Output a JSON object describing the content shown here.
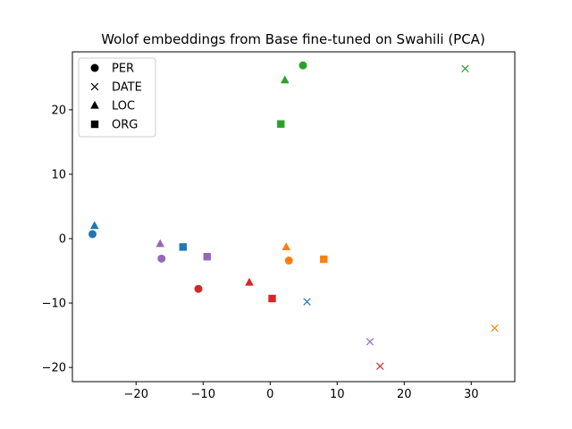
{
  "chart_data": {
    "type": "scatter",
    "title": "Wolof embeddings from Base fine-tuned on Swahili (PCA)",
    "xlabel": "",
    "ylabel": "",
    "xlim": [
      -29.5,
      36.5
    ],
    "ylim": [
      -22.2,
      29.0
    ],
    "xticks": [
      -20,
      -10,
      0,
      10,
      20,
      30
    ],
    "yticks": [
      -20,
      -10,
      0,
      10,
      20
    ],
    "grid": false,
    "legend": {
      "position": "top-left",
      "entries": [
        {
          "label": "PER",
          "marker": "circle"
        },
        {
          "label": "DATE",
          "marker": "x"
        },
        {
          "label": "LOC",
          "marker": "triangle"
        },
        {
          "label": "ORG",
          "marker": "square"
        }
      ]
    },
    "marker_by_type": {
      "PER": "circle",
      "DATE": "x",
      "LOC": "triangle",
      "ORG": "square"
    },
    "groups": [
      {
        "color": "#1f77b4",
        "points": [
          {
            "type": "PER",
            "x": -26.5,
            "y": 0.7
          },
          {
            "type": "DATE",
            "x": 5.5,
            "y": -9.8
          },
          {
            "type": "LOC",
            "x": -26.2,
            "y": 2.0
          },
          {
            "type": "ORG",
            "x": -13.0,
            "y": -1.3
          }
        ]
      },
      {
        "color": "#ff7f0e",
        "points": [
          {
            "type": "PER",
            "x": 2.8,
            "y": -3.4
          },
          {
            "type": "DATE",
            "x": 33.5,
            "y": -13.9
          },
          {
            "type": "LOC",
            "x": 2.4,
            "y": -1.3
          },
          {
            "type": "ORG",
            "x": 8.0,
            "y": -3.2
          }
        ]
      },
      {
        "color": "#2ca02c",
        "points": [
          {
            "type": "PER",
            "x": 4.9,
            "y": 26.9
          },
          {
            "type": "DATE",
            "x": 29.1,
            "y": 26.4
          },
          {
            "type": "LOC",
            "x": 2.2,
            "y": 24.6
          },
          {
            "type": "ORG",
            "x": 1.6,
            "y": 17.8
          }
        ]
      },
      {
        "color": "#d62728",
        "points": [
          {
            "type": "PER",
            "x": -10.7,
            "y": -7.8
          },
          {
            "type": "DATE",
            "x": 16.4,
            "y": -19.8
          },
          {
            "type": "LOC",
            "x": -3.1,
            "y": -6.8
          },
          {
            "type": "ORG",
            "x": 0.3,
            "y": -9.3
          }
        ]
      },
      {
        "color": "#9467bd",
        "points": [
          {
            "type": "PER",
            "x": -16.2,
            "y": -3.1
          },
          {
            "type": "DATE",
            "x": 14.9,
            "y": -16.0
          },
          {
            "type": "LOC",
            "x": -16.4,
            "y": -0.8
          },
          {
            "type": "ORG",
            "x": -9.4,
            "y": -2.8
          }
        ]
      }
    ]
  }
}
